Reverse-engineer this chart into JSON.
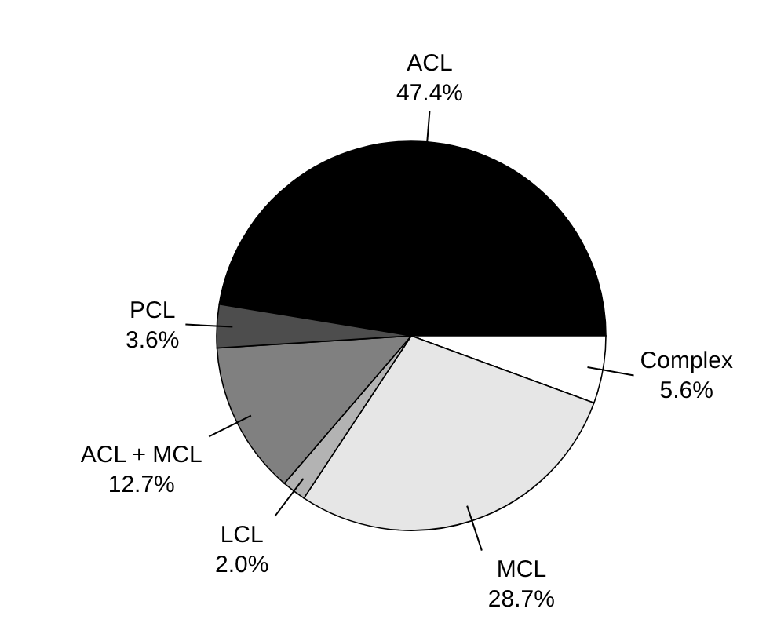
{
  "chart_data": {
    "type": "pie",
    "categories": [
      "ACL",
      "Complex",
      "MCL",
      "LCL",
      "ACL + MCL",
      "PCL"
    ],
    "values": [
      47.4,
      5.6,
      28.7,
      2.0,
      12.7,
      3.6
    ],
    "colors": [
      "#000000",
      "#ffffff",
      "#e6e6e6",
      "#b3b3b3",
      "#808080",
      "#4d4d4d"
    ],
    "value_labels": [
      "47.4%",
      "5.6%",
      "28.7%",
      "2.0%",
      "12.7%",
      "3.6%"
    ],
    "data_labels": true
  }
}
